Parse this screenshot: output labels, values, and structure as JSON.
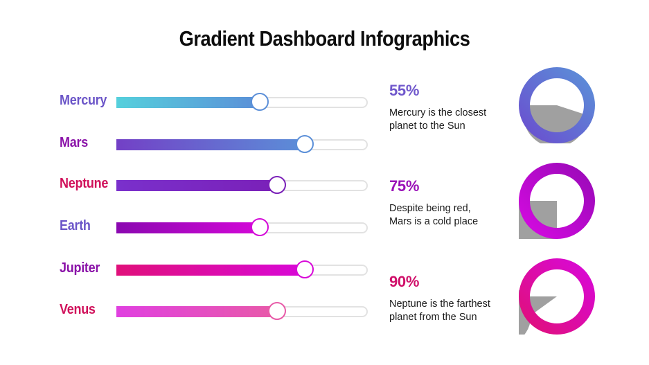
{
  "title": "Gradient Dashboard Infographics",
  "chart_data": [
    {
      "type": "bar",
      "title": "",
      "orientation": "horizontal-slider",
      "categories": [
        "Mercury",
        "Mars",
        "Neptune",
        "Earth",
        "Jupiter",
        "Venus"
      ],
      "values": [
        57,
        75,
        64,
        57,
        75,
        64
      ],
      "xlim": [
        0,
        100
      ],
      "grid": false,
      "legend": null,
      "colors": {
        "Mercury": {
          "label": "#6b55c8",
          "from": "#55d0dc",
          "to": "#5b8fd8"
        },
        "Mars": {
          "label": "#8a12a8",
          "from": "#7340c6",
          "to": "#5b8fd8"
        },
        "Neptune": {
          "label": "#d0105a",
          "from": "#7a30cc",
          "to": "#7a20b8"
        },
        "Earth": {
          "label": "#6b55c8",
          "from": "#8a08b0",
          "to": "#d408d8"
        },
        "Jupiter": {
          "label": "#8a12a8",
          "from": "#e0107a",
          "to": "#d808d8"
        },
        "Venus": {
          "label": "#d0105a",
          "from": "#e040e0",
          "to": "#e85aa8"
        }
      }
    },
    {
      "type": "pie",
      "title": "",
      "series": [
        {
          "name": "Mercury",
          "value": 55,
          "label": "55%",
          "description": [
            "Mercury is the closest",
            "planet to the Sun"
          ],
          "ring_from": "#6a4fcf",
          "ring_to": "#5b8fd8",
          "pct_color": "#7058cc"
        },
        {
          "name": "Mars",
          "value": 75,
          "label": "75%",
          "description": [
            "Despite being red,",
            "Mars is a cold place"
          ],
          "ring_from": "#d40ae0",
          "ring_to": "#9a0ab8",
          "pct_color": "#9a10b8"
        },
        {
          "name": "Neptune",
          "value": 90,
          "label": "90%",
          "description": [
            "Neptune is the farthest",
            "planet from the Sun"
          ],
          "ring_from": "#e0107a",
          "ring_to": "#d808d8",
          "pct_color": "#d0106a"
        }
      ],
      "wedge_color": "#a0a0a0"
    }
  ]
}
